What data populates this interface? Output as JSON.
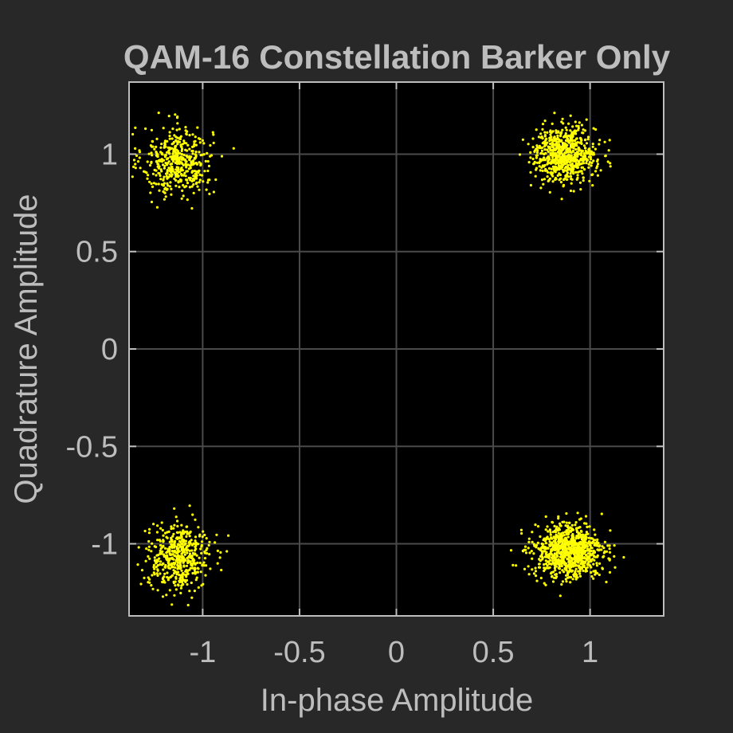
{
  "chart_data": {
    "type": "scatter",
    "title": "QAM-16 Constellation Barker Only",
    "xlabel": "In-phase Amplitude",
    "ylabel": "Quadrature Amplitude",
    "xlim": [
      -1.38,
      1.38
    ],
    "ylim": [
      -1.37,
      1.37
    ],
    "xticks": [
      -1,
      -0.5,
      0,
      0.5,
      1
    ],
    "yticks": [
      -1,
      -0.5,
      0,
      0.5,
      1
    ],
    "xtick_labels": [
      "-1",
      "-0.5",
      "0",
      "0.5",
      "1"
    ],
    "ytick_labels": [
      "-1",
      "-0.5",
      "0",
      "0.5",
      "1"
    ],
    "grid": true,
    "colors": {
      "background": "#282828",
      "plot_area": "#000000",
      "axes": "#bdbdbd",
      "grid": "#4a4a4a",
      "points": "#ffff00"
    },
    "series": [
      {
        "clusters": [
          {
            "center": [
              -1.13,
              0.96
            ],
            "spread": [
              0.09,
              0.09
            ],
            "count": 450
          },
          {
            "center": [
              0.87,
              1.0
            ],
            "spread": [
              0.08,
              0.07
            ],
            "count": 700
          },
          {
            "center": [
              -1.12,
              -1.07
            ],
            "spread": [
              0.08,
              0.08
            ],
            "count": 500
          },
          {
            "center": [
              0.89,
              -1.04
            ],
            "spread": [
              0.09,
              0.07
            ],
            "count": 900
          }
        ]
      }
    ]
  }
}
